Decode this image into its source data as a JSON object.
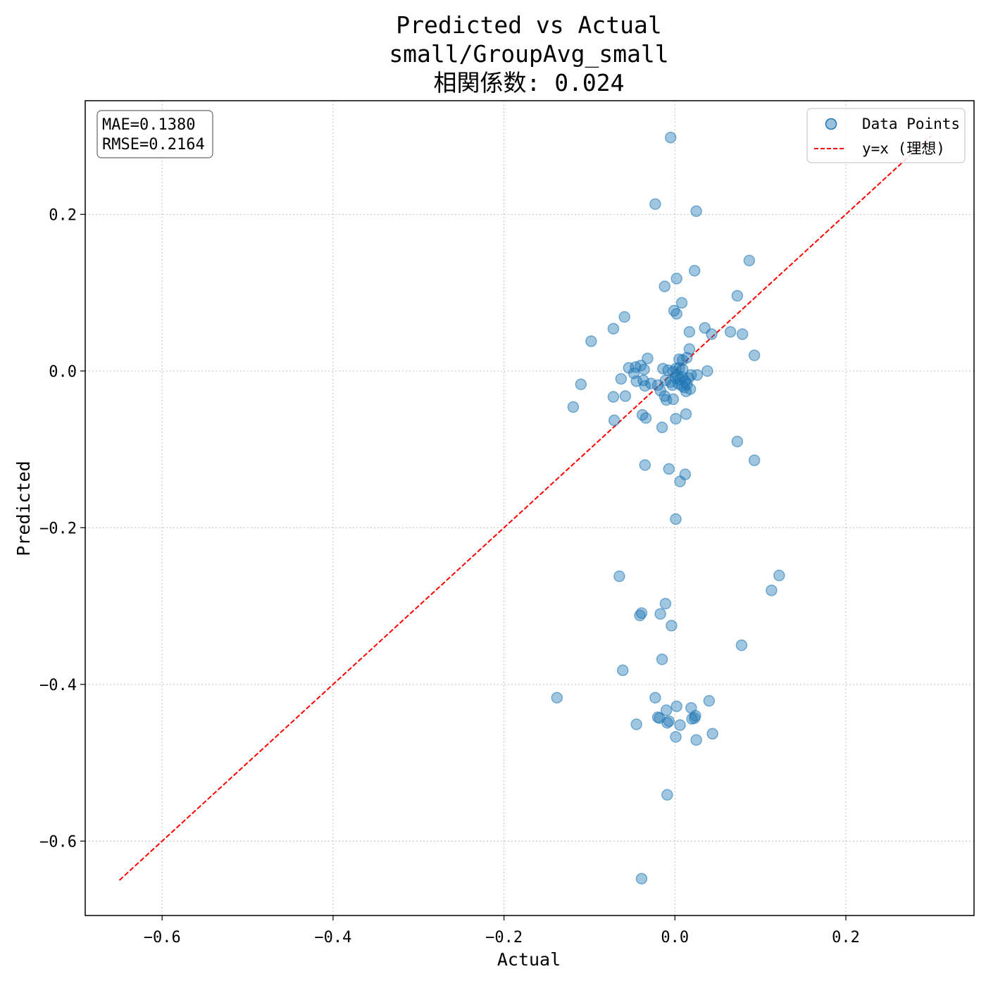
{
  "chart_data": {
    "type": "scatter",
    "title_lines": [
      "Predicted vs Actual",
      "small/GroupAvg_small",
      "相関係数: 0.024"
    ],
    "xlabel": "Actual",
    "ylabel": "Predicted",
    "xlim": [
      -0.69,
      0.35
    ],
    "ylim": [
      -0.695,
      0.345
    ],
    "x_ticks": [
      -0.6,
      -0.4,
      -0.2,
      0.0,
      0.2
    ],
    "x_tick_labels": [
      "−0.6",
      "−0.4",
      "−0.2",
      "0.0",
      "0.2"
    ],
    "y_ticks": [
      -0.6,
      -0.4,
      -0.2,
      0.0,
      0.2
    ],
    "y_tick_labels": [
      "−0.6",
      "−0.4",
      "−0.2",
      "0.0",
      "0.2"
    ],
    "grid": true,
    "stats_box": [
      "MAE=0.1380",
      "RMSE=0.2164"
    ],
    "legend": {
      "placement": "top-right",
      "entries": [
        {
          "label": "Data Points",
          "marker": "circle",
          "color": "#1f77b4"
        },
        {
          "label": "y=x (理想)",
          "marker": "dashed-line",
          "color": "#ff0000"
        }
      ]
    },
    "reference_line": {
      "x": [
        -0.65,
        0.3
      ],
      "y": [
        -0.65,
        0.3
      ],
      "color": "#ff0000",
      "style": "dashed"
    },
    "series": [
      {
        "name": "Data Points",
        "color": "#1f77b4",
        "points": [
          [
            -0.005,
            0.298
          ],
          [
            -0.023,
            0.213
          ],
          [
            0.025,
            0.204
          ],
          [
            0.023,
            0.128
          ],
          [
            0.087,
            0.141
          ],
          [
            0.002,
            0.118
          ],
          [
            -0.012,
            0.108
          ],
          [
            0.073,
            0.096
          ],
          [
            0.008,
            0.087
          ],
          [
            -0.001,
            0.077
          ],
          [
            0.002,
            0.073
          ],
          [
            -0.059,
            0.069
          ],
          [
            -0.072,
            0.054
          ],
          [
            0.035,
            0.055
          ],
          [
            0.017,
            0.05
          ],
          [
            0.065,
            0.05
          ],
          [
            0.079,
            0.047
          ],
          [
            0.043,
            0.047
          ],
          [
            -0.098,
            0.038
          ],
          [
            0.017,
            0.028
          ],
          [
            0.093,
            0.02
          ],
          [
            -0.032,
            0.016
          ],
          [
            0.005,
            0.015
          ],
          [
            0.014,
            0.017
          ],
          [
            0.009,
            0.014
          ],
          [
            -0.054,
            0.004
          ],
          [
            -0.046,
            0.005
          ],
          [
            -0.04,
            0.007
          ],
          [
            -0.036,
            0.002
          ],
          [
            -0.014,
            0.003
          ],
          [
            -0.008,
            0.001
          ],
          [
            0.001,
            0.003
          ],
          [
            0.005,
            0.004
          ],
          [
            0.009,
            0.002
          ],
          [
            0.038,
            0.0
          ],
          [
            -0.002,
            -0.001
          ],
          [
            -0.048,
            -0.003
          ],
          [
            -0.063,
            -0.01
          ],
          [
            -0.045,
            -0.013
          ],
          [
            -0.037,
            -0.012
          ],
          [
            -0.028,
            -0.016
          ],
          [
            -0.035,
            -0.019
          ],
          [
            -0.02,
            -0.018
          ],
          [
            -0.011,
            -0.012
          ],
          [
            -0.005,
            -0.014
          ],
          [
            0.001,
            -0.009
          ],
          [
            0.003,
            -0.006
          ],
          [
            0.006,
            -0.011
          ],
          [
            0.009,
            -0.008
          ],
          [
            0.012,
            -0.013
          ],
          [
            0.016,
            -0.009
          ],
          [
            0.019,
            -0.005
          ],
          [
            0.026,
            -0.005
          ],
          [
            -0.003,
            -0.018
          ],
          [
            0.004,
            -0.016
          ],
          [
            0.008,
            -0.019
          ],
          [
            0.011,
            -0.021
          ],
          [
            0.014,
            -0.017
          ],
          [
            0.018,
            -0.023
          ],
          [
            0.013,
            -0.026
          ],
          [
            -0.017,
            -0.025
          ],
          [
            -0.11,
            -0.017
          ],
          [
            -0.072,
            -0.033
          ],
          [
            -0.058,
            -0.032
          ],
          [
            -0.012,
            -0.032
          ],
          [
            -0.01,
            -0.037
          ],
          [
            -0.002,
            -0.036
          ],
          [
            -0.119,
            -0.046
          ],
          [
            -0.038,
            -0.056
          ],
          [
            -0.034,
            -0.06
          ],
          [
            0.013,
            -0.055
          ],
          [
            -0.071,
            -0.063
          ],
          [
            0.001,
            -0.061
          ],
          [
            -0.015,
            -0.072
          ],
          [
            0.073,
            -0.09
          ],
          [
            0.093,
            -0.114
          ],
          [
            -0.035,
            -0.12
          ],
          [
            -0.007,
            -0.125
          ],
          [
            0.012,
            -0.132
          ],
          [
            0.006,
            -0.141
          ],
          [
            0.001,
            -0.189
          ],
          [
            0.122,
            -0.261
          ],
          [
            -0.065,
            -0.262
          ],
          [
            0.113,
            -0.28
          ],
          [
            -0.011,
            -0.297
          ],
          [
            -0.039,
            -0.309
          ],
          [
            -0.041,
            -0.312
          ],
          [
            -0.017,
            -0.31
          ],
          [
            -0.004,
            -0.325
          ],
          [
            0.078,
            -0.35
          ],
          [
            -0.015,
            -0.368
          ],
          [
            -0.061,
            -0.382
          ],
          [
            -0.138,
            -0.417
          ],
          [
            -0.023,
            -0.417
          ],
          [
            0.04,
            -0.421
          ],
          [
            0.002,
            -0.428
          ],
          [
            0.019,
            -0.43
          ],
          [
            -0.01,
            -0.433
          ],
          [
            0.024,
            -0.44
          ],
          [
            -0.02,
            -0.442
          ],
          [
            -0.018,
            -0.443
          ],
          [
            0.02,
            -0.444
          ],
          [
            0.023,
            -0.443
          ],
          [
            -0.007,
            -0.447
          ],
          [
            -0.009,
            -0.449
          ],
          [
            -0.045,
            -0.451
          ],
          [
            0.006,
            -0.452
          ],
          [
            0.044,
            -0.463
          ],
          [
            0.001,
            -0.467
          ],
          [
            0.025,
            -0.471
          ],
          [
            -0.009,
            -0.541
          ],
          [
            -0.039,
            -0.648
          ]
        ]
      }
    ]
  }
}
